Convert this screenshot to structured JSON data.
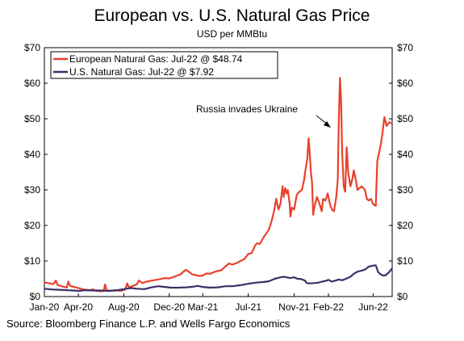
{
  "chart_data": {
    "type": "line",
    "title": "European vs. U.S. Natural Gas Price",
    "subtitle": "USD per MMBtu",
    "source": "Source: Bloomberg Finance L.P. and Wells Fargo Economics",
    "x_tick_labels": [
      "Jan-20",
      "Apr-20",
      "Aug-20",
      "Dec-20",
      "Mar-21",
      "Jul-21",
      "Nov-21",
      "Feb-22",
      "Jun-22"
    ],
    "x_tick_dates": [
      "2020-01-01",
      "2020-04-01",
      "2020-08-01",
      "2020-12-01",
      "2021-03-01",
      "2021-07-01",
      "2021-11-01",
      "2022-02-01",
      "2022-06-01"
    ],
    "x_range": [
      "2020-01-01",
      "2022-07-22"
    ],
    "y_tick_labels": [
      "$0",
      "$10",
      "$20",
      "$30",
      "$40",
      "$50",
      "$60",
      "$70"
    ],
    "ylim": [
      0,
      70
    ],
    "legend_position": "top-left",
    "annotation": "Russia invades Ukraine",
    "series": [
      {
        "name": "European Natural Gas: Jul-22 @ $48.74",
        "color": "#e8412c",
        "points": [
          [
            "2020-01-01",
            4.0
          ],
          [
            "2020-01-15",
            3.7
          ],
          [
            "2020-01-25",
            3.5
          ],
          [
            "2020-02-01",
            4.5
          ],
          [
            "2020-02-05",
            3.3
          ],
          [
            "2020-02-20",
            2.8
          ],
          [
            "2020-03-01",
            2.5
          ],
          [
            "2020-03-05",
            4.2
          ],
          [
            "2020-03-10",
            3.0
          ],
          [
            "2020-04-01",
            2.4
          ],
          [
            "2020-04-15",
            2.0
          ],
          [
            "2020-05-01",
            1.8
          ],
          [
            "2020-05-10",
            2.0
          ],
          [
            "2020-05-20",
            1.6
          ],
          [
            "2020-06-01",
            1.5
          ],
          [
            "2020-06-08",
            1.6
          ],
          [
            "2020-06-12",
            3.4
          ],
          [
            "2020-06-16",
            1.8
          ],
          [
            "2020-06-25",
            1.6
          ],
          [
            "2020-07-10",
            1.8
          ],
          [
            "2020-07-25",
            1.6
          ],
          [
            "2020-08-05",
            2.0
          ],
          [
            "2020-08-10",
            3.7
          ],
          [
            "2020-08-15",
            2.5
          ],
          [
            "2020-08-25",
            3.0
          ],
          [
            "2020-09-05",
            3.4
          ],
          [
            "2020-09-10",
            4.5
          ],
          [
            "2020-09-20",
            3.8
          ],
          [
            "2020-10-01",
            4.2
          ],
          [
            "2020-10-20",
            4.6
          ],
          [
            "2020-11-01",
            4.8
          ],
          [
            "2020-11-20",
            5.2
          ],
          [
            "2020-12-01",
            5.1
          ],
          [
            "2020-12-15",
            5.6
          ],
          [
            "2021-01-01",
            6.3
          ],
          [
            "2021-01-10",
            7.2
          ],
          [
            "2021-01-15",
            7.5
          ],
          [
            "2021-01-25",
            6.8
          ],
          [
            "2021-02-01",
            6.2
          ],
          [
            "2021-02-10",
            6.0
          ],
          [
            "2021-02-20",
            5.8
          ],
          [
            "2021-03-01",
            5.9
          ],
          [
            "2021-03-10",
            6.5
          ],
          [
            "2021-03-20",
            6.4
          ],
          [
            "2021-04-01",
            6.9
          ],
          [
            "2021-04-10",
            7.2
          ],
          [
            "2021-04-20",
            7.4
          ],
          [
            "2021-05-01",
            8.5
          ],
          [
            "2021-05-10",
            9.3
          ],
          [
            "2021-05-20",
            9.0
          ],
          [
            "2021-06-01",
            9.5
          ],
          [
            "2021-06-10",
            10.0
          ],
          [
            "2021-06-20",
            10.5
          ],
          [
            "2021-07-01",
            12.0
          ],
          [
            "2021-07-10",
            12.2
          ],
          [
            "2021-07-20",
            14.5
          ],
          [
            "2021-07-25",
            15.0
          ],
          [
            "2021-08-01",
            14.8
          ],
          [
            "2021-08-10",
            16.5
          ],
          [
            "2021-08-20",
            18.0
          ],
          [
            "2021-08-25",
            18.8
          ],
          [
            "2021-09-01",
            21.0
          ],
          [
            "2021-09-08",
            24.0
          ],
          [
            "2021-09-14",
            27.5
          ],
          [
            "2021-09-20",
            24.5
          ],
          [
            "2021-09-25",
            26.0
          ],
          [
            "2021-10-01",
            31.0
          ],
          [
            "2021-10-04",
            28.0
          ],
          [
            "2021-10-08",
            30.5
          ],
          [
            "2021-10-12",
            29.0
          ],
          [
            "2021-10-15",
            30.0
          ],
          [
            "2021-10-20",
            26.0
          ],
          [
            "2021-10-22",
            22.5
          ],
          [
            "2021-10-26",
            25.0
          ],
          [
            "2021-11-01",
            24.5
          ],
          [
            "2021-11-08",
            28.5
          ],
          [
            "2021-11-15",
            29.5
          ],
          [
            "2021-11-22",
            30.0
          ],
          [
            "2021-11-28",
            33.0
          ],
          [
            "2021-12-02",
            36.0
          ],
          [
            "2021-12-06",
            38.5
          ],
          [
            "2021-12-10",
            44.5
          ],
          [
            "2021-12-13",
            40.0
          ],
          [
            "2021-12-16",
            35.0
          ],
          [
            "2021-12-19",
            32.0
          ],
          [
            "2021-12-22",
            23.0
          ],
          [
            "2021-12-26",
            25.5
          ],
          [
            "2022-01-01",
            28.0
          ],
          [
            "2022-01-05",
            27.0
          ],
          [
            "2022-01-10",
            25.5
          ],
          [
            "2022-01-14",
            24.0
          ],
          [
            "2022-01-18",
            27.5
          ],
          [
            "2022-01-24",
            27.0
          ],
          [
            "2022-01-30",
            29.0
          ],
          [
            "2022-02-05",
            26.0
          ],
          [
            "2022-02-10",
            24.5
          ],
          [
            "2022-02-16",
            24.0
          ],
          [
            "2022-02-22",
            28.0
          ],
          [
            "2022-02-26",
            33.0
          ],
          [
            "2022-03-01",
            50.0
          ],
          [
            "2022-03-04",
            61.5
          ],
          [
            "2022-03-07",
            55.0
          ],
          [
            "2022-03-10",
            40.0
          ],
          [
            "2022-03-14",
            31.0
          ],
          [
            "2022-03-18",
            29.5
          ],
          [
            "2022-03-22",
            42.0
          ],
          [
            "2022-03-26",
            35.0
          ],
          [
            "2022-04-01",
            31.0
          ],
          [
            "2022-04-06",
            33.0
          ],
          [
            "2022-04-10",
            35.5
          ],
          [
            "2022-04-15",
            33.0
          ],
          [
            "2022-04-20",
            30.0
          ],
          [
            "2022-04-26",
            30.5
          ],
          [
            "2022-05-01",
            31.0
          ],
          [
            "2022-05-10",
            30.0
          ],
          [
            "2022-05-15",
            27.5
          ],
          [
            "2022-05-20",
            27.0
          ],
          [
            "2022-05-26",
            27.5
          ],
          [
            "2022-06-01",
            26.0
          ],
          [
            "2022-06-08",
            25.5
          ],
          [
            "2022-06-12",
            38.0
          ],
          [
            "2022-06-17",
            40.5
          ],
          [
            "2022-06-22",
            43.0
          ],
          [
            "2022-06-26",
            46.0
          ],
          [
            "2022-07-01",
            50.5
          ],
          [
            "2022-07-07",
            48.0
          ],
          [
            "2022-07-14",
            49.0
          ],
          [
            "2022-07-22",
            48.74
          ]
        ]
      },
      {
        "name": "U.S. Natural Gas: Jul-22 @ $7.92",
        "color": "#3a2f6b",
        "points": [
          [
            "2020-01-01",
            2.2
          ],
          [
            "2020-01-20",
            2.0
          ],
          [
            "2020-02-10",
            1.9
          ],
          [
            "2020-03-01",
            1.8
          ],
          [
            "2020-03-20",
            1.7
          ],
          [
            "2020-04-01",
            1.6
          ],
          [
            "2020-04-20",
            1.8
          ],
          [
            "2020-05-10",
            1.7
          ],
          [
            "2020-06-01",
            1.7
          ],
          [
            "2020-06-20",
            1.6
          ],
          [
            "2020-07-10",
            1.7
          ],
          [
            "2020-08-01",
            2.1
          ],
          [
            "2020-08-20",
            2.4
          ],
          [
            "2020-09-05",
            2.2
          ],
          [
            "2020-09-25",
            2.1
          ],
          [
            "2020-10-15",
            2.6
          ],
          [
            "2020-11-01",
            2.9
          ],
          [
            "2020-11-20",
            2.7
          ],
          [
            "2020-12-05",
            2.5
          ],
          [
            "2020-12-25",
            2.5
          ],
          [
            "2021-01-15",
            2.6
          ],
          [
            "2021-02-05",
            2.8
          ],
          [
            "2021-02-15",
            3.0
          ],
          [
            "2021-03-01",
            2.7
          ],
          [
            "2021-03-20",
            2.5
          ],
          [
            "2021-04-10",
            2.6
          ],
          [
            "2021-05-01",
            2.9
          ],
          [
            "2021-05-20",
            2.9
          ],
          [
            "2021-06-10",
            3.2
          ],
          [
            "2021-07-01",
            3.6
          ],
          [
            "2021-07-20",
            3.9
          ],
          [
            "2021-08-10",
            4.1
          ],
          [
            "2021-08-25",
            4.3
          ],
          [
            "2021-09-10",
            5.0
          ],
          [
            "2021-09-25",
            5.4
          ],
          [
            "2021-10-05",
            5.6
          ],
          [
            "2021-10-20",
            5.2
          ],
          [
            "2021-11-01",
            5.4
          ],
          [
            "2021-11-10",
            5.0
          ],
          [
            "2021-11-20",
            4.9
          ],
          [
            "2021-11-30",
            4.5
          ],
          [
            "2021-12-05",
            3.8
          ],
          [
            "2021-12-15",
            3.7
          ],
          [
            "2021-12-25",
            3.8
          ],
          [
            "2022-01-05",
            3.9
          ],
          [
            "2022-01-15",
            4.2
          ],
          [
            "2022-01-25",
            4.4
          ],
          [
            "2022-02-01",
            4.7
          ],
          [
            "2022-02-10",
            4.2
          ],
          [
            "2022-02-20",
            4.5
          ],
          [
            "2022-03-01",
            4.8
          ],
          [
            "2022-03-10",
            4.6
          ],
          [
            "2022-03-20",
            5.0
          ],
          [
            "2022-04-01",
            5.6
          ],
          [
            "2022-04-10",
            6.4
          ],
          [
            "2022-04-20",
            7.0
          ],
          [
            "2022-05-01",
            7.3
          ],
          [
            "2022-05-10",
            7.6
          ],
          [
            "2022-05-20",
            8.4
          ],
          [
            "2022-06-01",
            8.7
          ],
          [
            "2022-06-08",
            8.8
          ],
          [
            "2022-06-14",
            7.0
          ],
          [
            "2022-06-20",
            6.3
          ],
          [
            "2022-06-28",
            5.9
          ],
          [
            "2022-07-05",
            6.0
          ],
          [
            "2022-07-12",
            6.7
          ],
          [
            "2022-07-22",
            7.92
          ]
        ]
      }
    ]
  }
}
